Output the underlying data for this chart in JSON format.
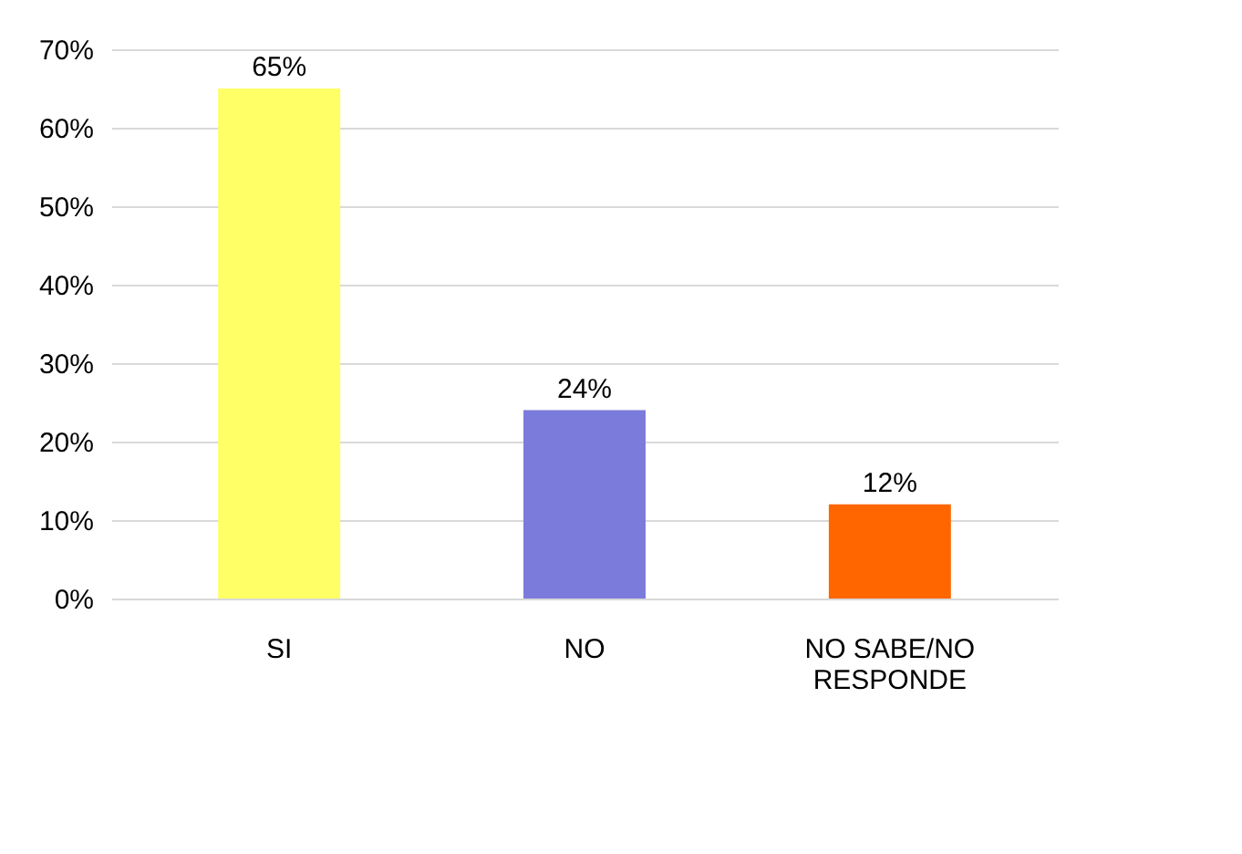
{
  "chart_data": {
    "type": "bar",
    "categories": [
      "SI",
      "NO",
      "NO SABE/NO RESPONDE"
    ],
    "values": [
      65,
      24,
      12
    ],
    "colors": [
      "#ffff66",
      "#7b7bdb",
      "#ff6600"
    ],
    "value_labels": [
      "65%",
      "24%",
      "12%"
    ],
    "ylim": [
      0,
      70
    ],
    "yticks": [
      {
        "value": 0,
        "label": "0%"
      },
      {
        "value": 10,
        "label": "10%"
      },
      {
        "value": 20,
        "label": "20%"
      },
      {
        "value": 30,
        "label": "30%"
      },
      {
        "value": 40,
        "label": "40%"
      },
      {
        "value": 50,
        "label": "50%"
      },
      {
        "value": 60,
        "label": "60%"
      },
      {
        "value": 70,
        "label": "70%"
      }
    ],
    "grid": "y",
    "legend": false
  }
}
